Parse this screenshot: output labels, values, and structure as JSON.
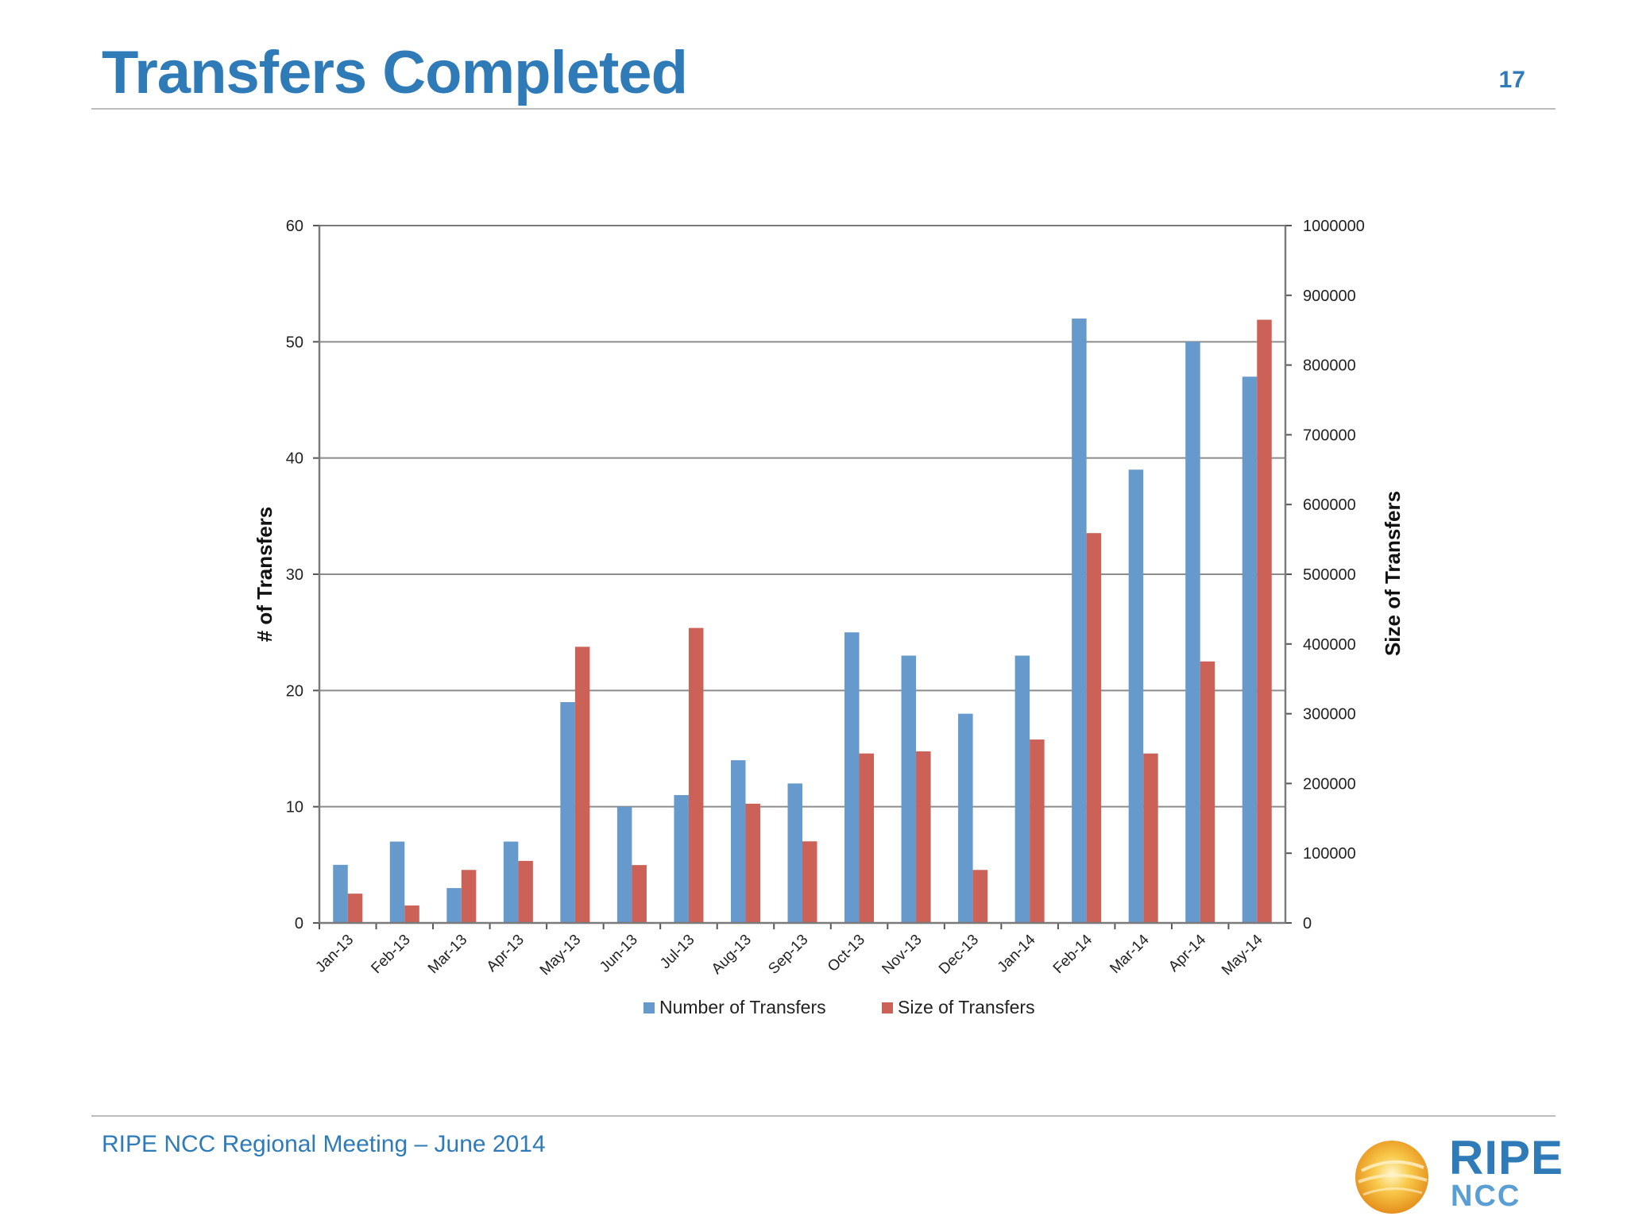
{
  "slide": {
    "title": "Transfers Completed",
    "page_number": "17",
    "footer": "RIPE NCC Regional Meeting – June 2014"
  },
  "logo": {
    "main": "RIPE",
    "sub": "NCC"
  },
  "colors": {
    "title": "#2f7bb8",
    "series_number": "#6699cc",
    "series_size": "#cc6157",
    "grid": "#8c8c8c"
  },
  "chart_data": {
    "type": "bar",
    "title": "",
    "categories": [
      "Jan-13",
      "Feb-13",
      "Mar-13",
      "Apr-13",
      "May-13",
      "Jun-13",
      "Jul-13",
      "Aug-13",
      "Sep-13",
      "Oct-13",
      "Nov-13",
      "Dec-13",
      "Jan-14",
      "Feb-14",
      "Mar-14",
      "Apr-14",
      "May-14"
    ],
    "series": [
      {
        "name": "Number of Transfers",
        "axis": "left",
        "values": [
          5,
          7,
          3,
          7,
          19,
          10,
          11,
          14,
          12,
          25,
          23,
          18,
          23,
          52,
          39,
          50,
          47
        ]
      },
      {
        "name": "Size of Transfers",
        "axis": "right",
        "values": [
          42000,
          25000,
          76000,
          89000,
          396000,
          83000,
          423000,
          171000,
          117000,
          243000,
          246000,
          76000,
          263000,
          559000,
          243000,
          375000,
          865000
        ]
      }
    ],
    "y_left": {
      "label": "# of Transfers",
      "range": [
        0,
        60
      ],
      "ticks": [
        0,
        10,
        20,
        30,
        40,
        50,
        60
      ]
    },
    "y_right": {
      "label": "Size of Transfers",
      "range": [
        0,
        1000000
      ],
      "ticks": [
        0,
        100000,
        200000,
        300000,
        400000,
        500000,
        600000,
        700000,
        800000,
        900000,
        1000000
      ]
    },
    "grid": true,
    "legend": "bottom"
  }
}
